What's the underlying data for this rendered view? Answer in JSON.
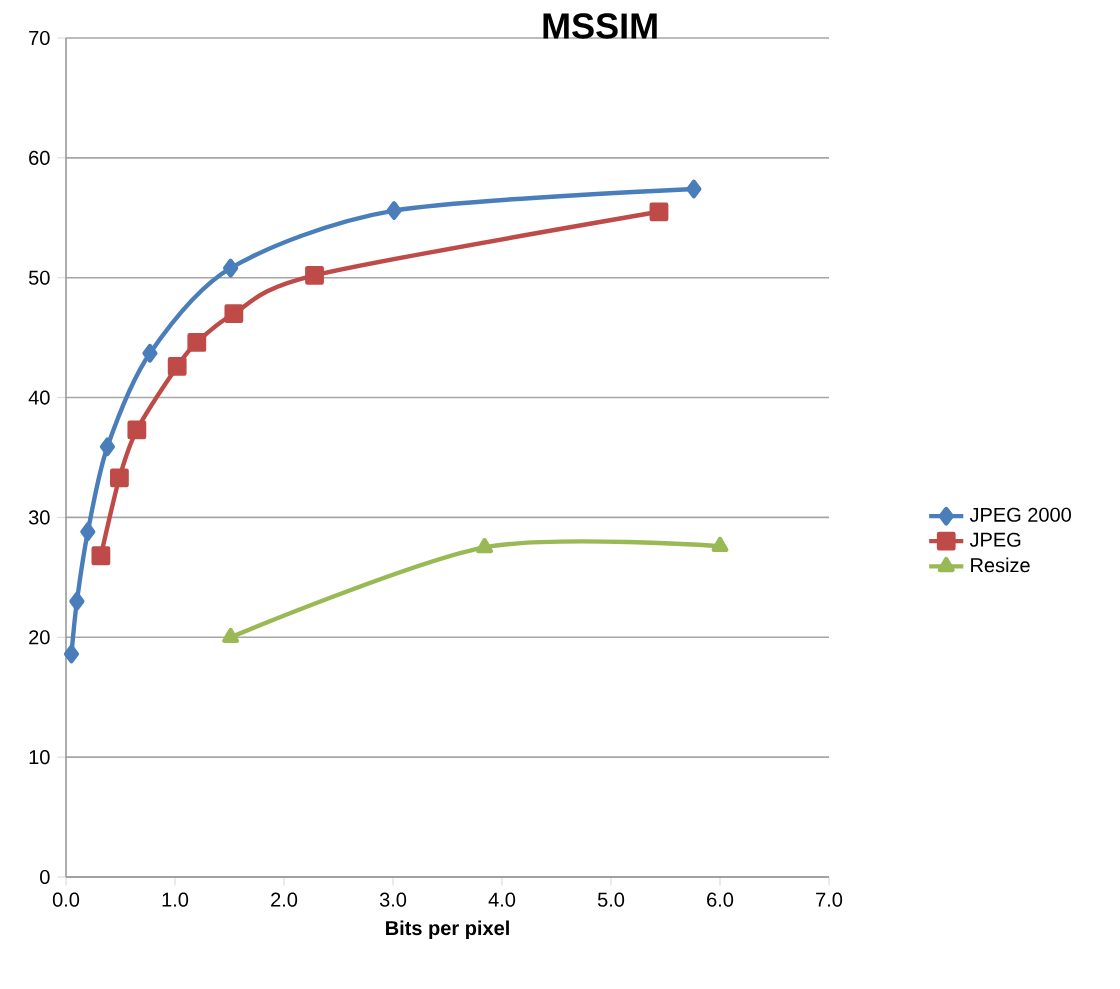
{
  "chart_data": {
    "type": "line",
    "title": "MSSIM",
    "xlabel": "Bits per pixel",
    "xlim": [
      0,
      7
    ],
    "xticks": [
      {
        "value": 0,
        "label": "0.0"
      },
      {
        "value": 1,
        "label": "1.0"
      },
      {
        "value": 2,
        "label": "2.0"
      },
      {
        "value": 3,
        "label": "3.0"
      },
      {
        "value": 4,
        "label": "4.0"
      },
      {
        "value": 5,
        "label": "5.0"
      },
      {
        "value": 6,
        "label": "6.0"
      },
      {
        "value": 7,
        "label": "7.0"
      }
    ],
    "ylim": [
      0,
      70
    ],
    "yticks": [
      0,
      10,
      20,
      30,
      40,
      50,
      60,
      70
    ],
    "grid": "y",
    "legend": "right",
    "line_style": "solid",
    "series": [
      {
        "name": "JPEG 2000",
        "color": "#4a7ebb",
        "marker": "diamond",
        "x": [
          0.05,
          0.1,
          0.2,
          0.38,
          0.77,
          1.51,
          3.01,
          5.76
        ],
        "values": [
          18.6,
          23.0,
          28.8,
          35.9,
          43.7,
          50.8,
          55.6,
          57.4
        ]
      },
      {
        "name": "JPEG",
        "color": "#be4b48",
        "marker": "square",
        "x": [
          0.32,
          0.49,
          0.65,
          1.02,
          1.2,
          1.54,
          2.28,
          5.44
        ],
        "values": [
          26.8,
          33.3,
          37.3,
          42.6,
          44.6,
          47.0,
          50.2,
          55.5
        ]
      },
      {
        "name": "Resize",
        "color": "#98b954",
        "marker": "triangle",
        "x": [
          1.51,
          3.84,
          6.0
        ],
        "values": [
          20.0,
          27.5,
          27.6
        ]
      }
    ]
  }
}
